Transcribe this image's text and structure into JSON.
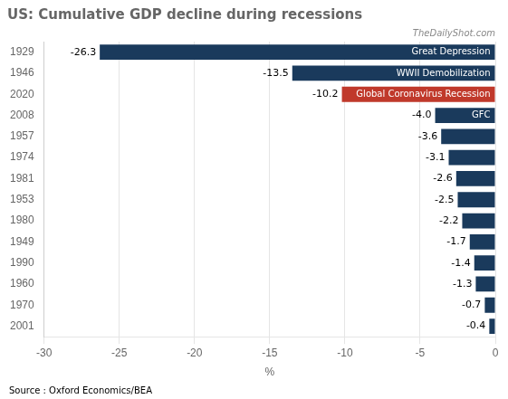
{
  "chart_data": {
    "type": "bar",
    "orientation": "horizontal",
    "title": "US: Cumulative GDP decline during recessions",
    "xlabel": "%",
    "categories": [
      "1929",
      "1946",
      "2020",
      "2008",
      "1957",
      "1974",
      "1981",
      "1953",
      "1980",
      "1949",
      "1990",
      "1960",
      "1970",
      "2001"
    ],
    "values": [
      -26.3,
      -13.5,
      -10.2,
      -4.0,
      -3.6,
      -3.1,
      -2.6,
      -2.5,
      -2.2,
      -1.7,
      -1.4,
      -1.3,
      -0.7,
      -0.4
    ],
    "value_labels": [
      "-26.3",
      "-13.5",
      "-10.2",
      "-4.0",
      "-3.6",
      "-3.1",
      "-2.6",
      "-2.5",
      "-2.2",
      "-1.7",
      "-1.4",
      "-1.3",
      "-0.7",
      "-0.4"
    ],
    "data_labels": true,
    "colors": [
      "#1a3a5c",
      "#1a3a5c",
      "#c0392b",
      "#1a3a5c",
      "#1a3a5c",
      "#1a3a5c",
      "#1a3a5c",
      "#1a3a5c",
      "#1a3a5c",
      "#1a3a5c",
      "#1a3a5c",
      "#1a3a5c",
      "#1a3a5c",
      "#1a3a5c"
    ],
    "xlim": [
      -30,
      0
    ],
    "xticks": [
      -30,
      -25,
      -20,
      -15,
      -10,
      -5,
      0
    ],
    "grid": true,
    "annotations": [
      {
        "category": "1929",
        "text": "Great Depression"
      },
      {
        "category": "1946",
        "text": "WWII Demobilization"
      },
      {
        "category": "2020",
        "text": "Global Coronavirus Recession"
      },
      {
        "category": "2008",
        "text": "GFC"
      },
      {
        "text": "TheDailyShot.com"
      },
      {
        "text": "Source : Oxford Economics/BEA"
      }
    ]
  }
}
